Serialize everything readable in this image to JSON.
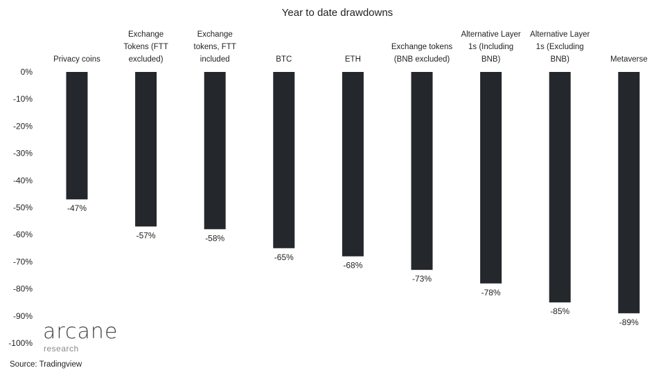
{
  "chart_data": {
    "type": "bar",
    "title": "Year to date drawdowns",
    "categories": [
      [
        "Privacy coins"
      ],
      [
        "Exchange",
        "Tokens (FTT",
        "excluded)"
      ],
      [
        "Exchange",
        "tokens, FTT",
        "included"
      ],
      [
        "BTC"
      ],
      [
        "ETH"
      ],
      [
        "Exchange tokens",
        "(BNB excluded)"
      ],
      [
        "Alternative Layer",
        "1s (Including",
        "BNB)"
      ],
      [
        "Alternative Layer",
        "1s (Excluding",
        "BNB)"
      ],
      [
        "Metaverse"
      ]
    ],
    "values": [
      -47,
      -57,
      -58,
      -65,
      -68,
      -73,
      -78,
      -85,
      -89
    ],
    "value_labels": [
      "-47%",
      "-57%",
      "-58%",
      "-65%",
      "-68%",
      "-73%",
      "-78%",
      "-85%",
      "-89%"
    ],
    "ylim": [
      -100,
      0
    ],
    "yticks": [
      0,
      -10,
      -20,
      -30,
      -40,
      -50,
      -60,
      -70,
      -80,
      -90,
      -100
    ],
    "ytick_labels": [
      "0%",
      "-10%",
      "-20%",
      "-30%",
      "-40%",
      "-50%",
      "-60%",
      "-70%",
      "-80%",
      "-90%",
      "-100%"
    ],
    "category_label_position": "top",
    "grid": false,
    "legend": "none",
    "bar_color": "#24272b"
  },
  "branding": {
    "logo_text": "arcane",
    "logo_subtext": "research"
  },
  "source": "Source: Tradingview"
}
